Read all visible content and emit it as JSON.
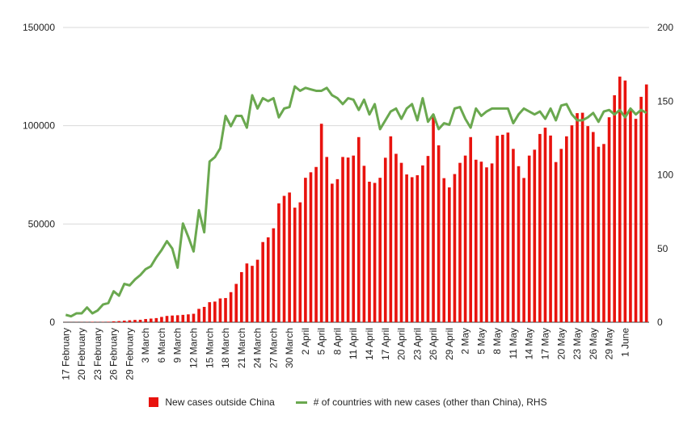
{
  "chart_data": {
    "type": "bar+line",
    "title": "",
    "xlabel": "",
    "ylabel_left": "",
    "ylabel_right": "",
    "ylim_left": [
      0,
      150000
    ],
    "ylim_right": [
      0,
      200
    ],
    "yticks_left": [
      "0",
      "50000",
      "100000",
      "150000"
    ],
    "yticks_right": [
      "0",
      "50",
      "100",
      "150",
      "200"
    ],
    "grid": true,
    "legend_position": "bottom",
    "x_tick_labels": [
      "17 February",
      "20 February",
      "23 February",
      "26 February",
      "29 February",
      "3 March",
      "6 March",
      "9 March",
      "12 March",
      "15 March",
      "18 March",
      "21 March",
      "24 March",
      "27 March",
      "30 March",
      "2 April",
      "5 April",
      "8 April",
      "11 April",
      "14 April",
      "17 April",
      "20 April",
      "23 April",
      "26 April",
      "29 April",
      "2 May",
      "5 May",
      "8 May",
      "11 May",
      "14 May",
      "17 May",
      "20 May",
      "23 May",
      "26 May",
      "29 May",
      "1 June"
    ],
    "series": [
      {
        "name": "New cases outside China",
        "type": "bar",
        "axis": "left",
        "color": "#e8130e",
        "values": [
          50,
          60,
          80,
          90,
          110,
          200,
          120,
          150,
          240,
          460,
          580,
          800,
          1000,
          1180,
          1250,
          1620,
          1850,
          2100,
          2700,
          3200,
          3400,
          3550,
          3750,
          4000,
          4300,
          6800,
          7800,
          10200,
          10500,
          12100,
          12300,
          15300,
          19500,
          25500,
          29900,
          28700,
          31800,
          40800,
          43200,
          47800,
          60500,
          64300,
          66000,
          58300,
          61000,
          73500,
          76300,
          79000,
          101000,
          84100,
          70500,
          72800,
          84100,
          83800,
          84800,
          94200,
          79600,
          71500,
          70900,
          73500,
          83700,
          94600,
          85700,
          81100,
          75200,
          73800,
          74800,
          79800,
          84600,
          105700,
          90000,
          73300,
          68600,
          75400,
          81100,
          84800,
          94200,
          82700,
          81700,
          78800,
          80800,
          94900,
          95400,
          96500,
          88200,
          79400,
          73400,
          84800,
          87800,
          95800,
          99000,
          95000,
          81500,
          88200,
          94600,
          100200,
          106400,
          106600,
          99800,
          96800,
          89300,
          90700,
          104300,
          115500,
          125000,
          123000,
          108400,
          103500,
          114700,
          121000
        ]
      },
      {
        "name": "# of countries with new cases (other than China), RHS",
        "type": "line",
        "axis": "right",
        "color": "#6aa84f",
        "values": [
          5,
          4,
          6,
          6,
          10,
          6,
          8,
          12,
          13,
          21,
          18,
          26,
          25,
          29,
          32,
          36,
          38,
          44,
          49,
          55,
          50,
          37,
          67,
          58,
          48,
          76,
          61,
          109,
          112,
          118,
          140,
          133,
          140,
          140,
          132,
          154,
          145,
          152,
          150,
          152,
          139,
          145,
          146,
          160,
          157,
          159,
          158,
          157,
          157,
          159,
          154,
          152,
          148,
          152,
          151,
          144,
          151,
          141,
          148,
          131,
          137,
          143,
          145,
          138,
          145,
          148,
          137,
          152,
          136,
          141,
          131,
          135,
          134,
          145,
          146,
          138,
          132,
          145,
          140,
          143,
          145,
          145,
          145,
          145,
          135,
          141,
          145,
          143,
          141,
          143,
          138,
          145,
          137,
          147,
          148,
          141,
          137,
          137,
          139,
          142,
          136,
          143,
          144,
          141,
          144,
          139,
          145,
          141,
          144,
          142
        ]
      }
    ]
  }
}
